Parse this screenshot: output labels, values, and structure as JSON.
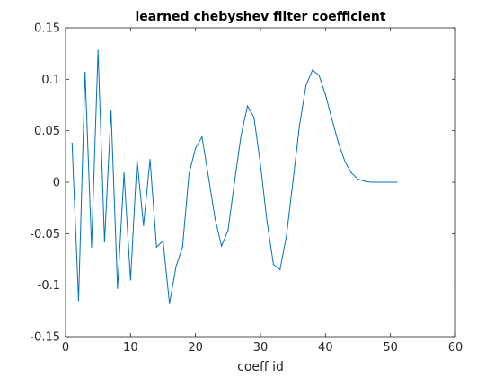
{
  "chart_data": {
    "type": "line",
    "title": "learned chebyshev filter coefficient",
    "xlabel": "coeff id",
    "ylabel": "",
    "xlim": [
      0,
      60
    ],
    "ylim": [
      -0.15,
      0.15
    ],
    "xticks": [
      0,
      10,
      20,
      30,
      40,
      50,
      60
    ],
    "xtick_labels": [
      "0",
      "10",
      "20",
      "30",
      "40",
      "50",
      "60"
    ],
    "yticks": [
      -0.15,
      -0.1,
      -0.05,
      0,
      0.05,
      0.1,
      0.15
    ],
    "ytick_labels": [
      "-0.15",
      "-0.1",
      "-0.05",
      "0",
      "0.05",
      "0.1",
      "0.15"
    ],
    "grid": false,
    "line_color": "#0072bd",
    "series": [
      {
        "x": [
          1,
          2,
          3,
          4,
          5,
          6,
          7,
          8,
          9,
          10,
          11,
          12,
          13,
          14,
          15,
          16,
          17,
          18,
          19,
          20,
          21,
          22,
          23,
          24,
          25,
          26,
          27,
          28,
          29,
          30,
          31,
          32,
          33,
          34,
          35,
          36,
          37,
          38,
          39,
          40,
          41,
          42,
          43,
          44,
          45,
          46,
          47,
          48,
          49,
          50,
          51
        ],
        "values": [
          0.038,
          -0.115,
          0.107,
          -0.063,
          0.128,
          -0.058,
          0.07,
          -0.103,
          0.009,
          -0.095,
          0.022,
          -0.042,
          0.022,
          -0.063,
          -0.057,
          -0.118,
          -0.082,
          -0.063,
          0.008,
          0.033,
          0.044,
          0.005,
          -0.035,
          -0.062,
          -0.047,
          0.0,
          0.045,
          0.074,
          0.063,
          0.017,
          -0.038,
          -0.08,
          -0.085,
          -0.052,
          0.001,
          0.055,
          0.094,
          0.109,
          0.104,
          0.085,
          0.061,
          0.038,
          0.02,
          0.009,
          0.003,
          0.001,
          0.0,
          0.0,
          0.0,
          0.0,
          0.0
        ]
      }
    ]
  }
}
